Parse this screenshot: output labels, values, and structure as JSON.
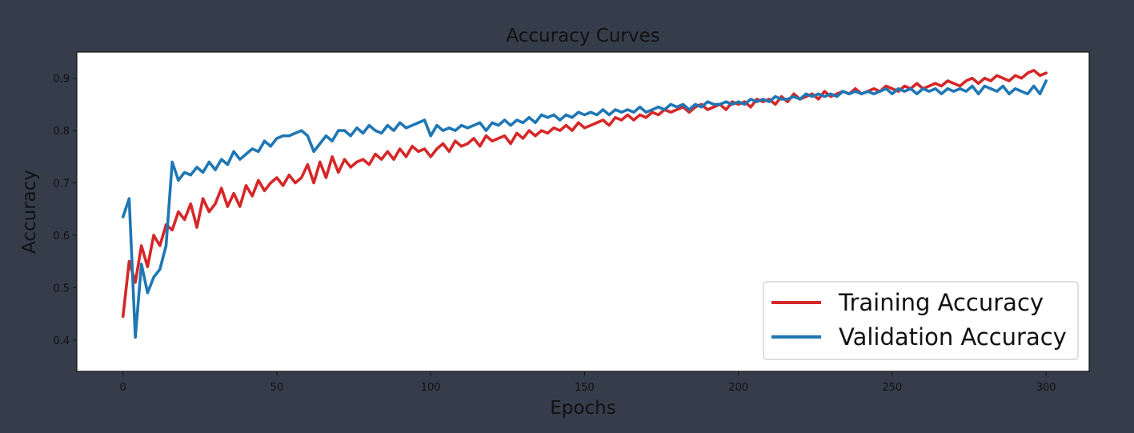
{
  "chart_data": {
    "type": "line",
    "title": "Accuracy Curves",
    "xlabel": "Epochs",
    "ylabel": "Accuracy",
    "xlim": [
      -15,
      314
    ],
    "ylim": [
      0.34,
      0.95
    ],
    "xticks": [
      0,
      50,
      100,
      150,
      200,
      250,
      300
    ],
    "yticks": [
      0.4,
      0.5,
      0.6,
      0.7,
      0.8,
      0.9
    ],
    "grid": false,
    "legend_position": "bottom-right",
    "x": [
      0,
      2,
      4,
      6,
      8,
      10,
      12,
      14,
      16,
      18,
      20,
      22,
      24,
      26,
      28,
      30,
      32,
      34,
      36,
      38,
      40,
      42,
      44,
      46,
      48,
      50,
      52,
      54,
      56,
      58,
      60,
      62,
      64,
      66,
      68,
      70,
      72,
      74,
      76,
      78,
      80,
      82,
      84,
      86,
      88,
      90,
      92,
      94,
      96,
      98,
      100,
      102,
      104,
      106,
      108,
      110,
      112,
      114,
      116,
      118,
      120,
      122,
      124,
      126,
      128,
      130,
      132,
      134,
      136,
      138,
      140,
      142,
      144,
      146,
      148,
      150,
      152,
      154,
      156,
      158,
      160,
      162,
      164,
      166,
      168,
      170,
      172,
      174,
      176,
      178,
      180,
      182,
      184,
      186,
      188,
      190,
      192,
      194,
      196,
      198,
      200,
      202,
      204,
      206,
      208,
      210,
      212,
      214,
      216,
      218,
      220,
      222,
      224,
      226,
      228,
      230,
      232,
      234,
      236,
      238,
      240,
      242,
      244,
      246,
      248,
      250,
      252,
      254,
      256,
      258,
      260,
      262,
      264,
      266,
      268,
      270,
      272,
      274,
      276,
      278,
      280,
      282,
      284,
      286,
      288,
      290,
      292,
      294,
      296,
      298,
      300
    ],
    "series": [
      {
        "name": "Training Accuracy",
        "color": "#d62728",
        "values": [
          0.445,
          0.55,
          0.51,
          0.58,
          0.54,
          0.6,
          0.58,
          0.62,
          0.61,
          0.645,
          0.63,
          0.66,
          0.615,
          0.67,
          0.645,
          0.66,
          0.69,
          0.655,
          0.68,
          0.655,
          0.695,
          0.675,
          0.705,
          0.685,
          0.7,
          0.71,
          0.695,
          0.715,
          0.7,
          0.71,
          0.735,
          0.7,
          0.74,
          0.71,
          0.75,
          0.72,
          0.745,
          0.73,
          0.74,
          0.745,
          0.735,
          0.755,
          0.745,
          0.76,
          0.745,
          0.765,
          0.75,
          0.77,
          0.76,
          0.765,
          0.75,
          0.765,
          0.775,
          0.76,
          0.78,
          0.77,
          0.775,
          0.785,
          0.77,
          0.79,
          0.78,
          0.785,
          0.79,
          0.775,
          0.795,
          0.785,
          0.8,
          0.79,
          0.8,
          0.795,
          0.805,
          0.8,
          0.81,
          0.8,
          0.815,
          0.805,
          0.81,
          0.815,
          0.82,
          0.81,
          0.825,
          0.82,
          0.83,
          0.82,
          0.83,
          0.825,
          0.835,
          0.83,
          0.84,
          0.835,
          0.84,
          0.845,
          0.835,
          0.845,
          0.85,
          0.84,
          0.845,
          0.85,
          0.84,
          0.855,
          0.85,
          0.855,
          0.845,
          0.86,
          0.855,
          0.86,
          0.85,
          0.865,
          0.855,
          0.87,
          0.86,
          0.865,
          0.87,
          0.86,
          0.875,
          0.865,
          0.87,
          0.875,
          0.87,
          0.88,
          0.87,
          0.875,
          0.88,
          0.875,
          0.885,
          0.88,
          0.875,
          0.885,
          0.88,
          0.89,
          0.88,
          0.885,
          0.89,
          0.885,
          0.895,
          0.89,
          0.885,
          0.895,
          0.9,
          0.89,
          0.9,
          0.895,
          0.905,
          0.9,
          0.895,
          0.905,
          0.9,
          0.91,
          0.915,
          0.905,
          0.91
        ]
      },
      {
        "name": "Validation Accuracy",
        "color": "#1f77b4",
        "values": [
          0.635,
          0.67,
          0.405,
          0.545,
          0.49,
          0.52,
          0.535,
          0.58,
          0.74,
          0.705,
          0.72,
          0.715,
          0.73,
          0.72,
          0.74,
          0.725,
          0.745,
          0.735,
          0.76,
          0.745,
          0.755,
          0.765,
          0.76,
          0.78,
          0.77,
          0.785,
          0.79,
          0.79,
          0.795,
          0.8,
          0.79,
          0.76,
          0.775,
          0.79,
          0.78,
          0.8,
          0.8,
          0.79,
          0.805,
          0.795,
          0.81,
          0.8,
          0.795,
          0.81,
          0.8,
          0.815,
          0.805,
          0.81,
          0.815,
          0.82,
          0.79,
          0.81,
          0.8,
          0.805,
          0.8,
          0.81,
          0.805,
          0.81,
          0.815,
          0.8,
          0.815,
          0.81,
          0.82,
          0.81,
          0.82,
          0.815,
          0.825,
          0.815,
          0.83,
          0.825,
          0.83,
          0.82,
          0.83,
          0.825,
          0.835,
          0.83,
          0.835,
          0.83,
          0.84,
          0.83,
          0.84,
          0.835,
          0.84,
          0.835,
          0.845,
          0.835,
          0.84,
          0.845,
          0.84,
          0.85,
          0.845,
          0.85,
          0.84,
          0.85,
          0.845,
          0.855,
          0.85,
          0.85,
          0.855,
          0.85,
          0.855,
          0.85,
          0.86,
          0.855,
          0.86,
          0.855,
          0.865,
          0.86,
          0.86,
          0.865,
          0.86,
          0.87,
          0.865,
          0.87,
          0.865,
          0.87,
          0.865,
          0.875,
          0.87,
          0.875,
          0.87,
          0.875,
          0.87,
          0.875,
          0.88,
          0.87,
          0.88,
          0.875,
          0.88,
          0.87,
          0.88,
          0.875,
          0.88,
          0.87,
          0.88,
          0.875,
          0.88,
          0.875,
          0.885,
          0.87,
          0.885,
          0.88,
          0.875,
          0.885,
          0.87,
          0.88,
          0.875,
          0.87,
          0.885,
          0.87,
          0.895
        ]
      }
    ]
  }
}
